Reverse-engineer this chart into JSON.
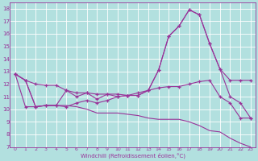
{
  "xlabel": "Windchill (Refroidissement éolien,°C)",
  "background_color": "#b2e0df",
  "grid_color": "#ffffff",
  "line_color": "#993399",
  "xlim": [
    -0.5,
    23.5
  ],
  "ylim": [
    7,
    18.5
  ],
  "yticks": [
    7,
    8,
    9,
    10,
    11,
    12,
    13,
    14,
    15,
    16,
    17,
    18
  ],
  "xticks": [
    0,
    1,
    2,
    3,
    4,
    5,
    6,
    7,
    8,
    9,
    10,
    11,
    12,
    13,
    14,
    15,
    16,
    17,
    18,
    19,
    20,
    21,
    22,
    23
  ],
  "line1_x": [
    0,
    1,
    2,
    3,
    4,
    5,
    6,
    7,
    8,
    9,
    10,
    11,
    12,
    13,
    14,
    15,
    16,
    17,
    18,
    19,
    20,
    21,
    22,
    23
  ],
  "line1_y": [
    12.8,
    12.3,
    12.0,
    11.9,
    11.9,
    11.5,
    11.3,
    11.3,
    11.2,
    11.2,
    11.2,
    11.1,
    11.1,
    11.5,
    13.1,
    15.8,
    16.6,
    17.9,
    17.5,
    15.2,
    13.2,
    12.3,
    12.3,
    12.3
  ],
  "line2_x": [
    0,
    1,
    2,
    3,
    4,
    5,
    6,
    7,
    8,
    9,
    10,
    11,
    12,
    13,
    14,
    15,
    16,
    17,
    18,
    19,
    20,
    21,
    22,
    23
  ],
  "line2_y": [
    12.8,
    12.3,
    10.2,
    10.3,
    10.3,
    11.5,
    11.0,
    11.3,
    10.8,
    11.2,
    11.0,
    11.1,
    11.1,
    11.5,
    13.1,
    15.8,
    16.6,
    17.9,
    17.5,
    15.2,
    13.2,
    11.0,
    10.5,
    9.3
  ],
  "line3_x": [
    0,
    1,
    2,
    3,
    4,
    5,
    6,
    7,
    8,
    9,
    10,
    11,
    12,
    13,
    14,
    15,
    16,
    17,
    18,
    19,
    20,
    21,
    22,
    23
  ],
  "line3_y": [
    12.8,
    12.3,
    10.2,
    10.3,
    10.3,
    10.3,
    10.2,
    10.0,
    9.7,
    9.7,
    9.7,
    9.6,
    9.5,
    9.3,
    9.2,
    9.2,
    9.2,
    9.0,
    8.7,
    8.3,
    8.2,
    7.7,
    7.3,
    7.0
  ],
  "line4_x": [
    0,
    1,
    2,
    3,
    4,
    5,
    6,
    7,
    8,
    9,
    10,
    11,
    12,
    13,
    14,
    15,
    16,
    17,
    18,
    19,
    20,
    21,
    22,
    23
  ],
  "line4_y": [
    12.8,
    10.2,
    10.2,
    10.3,
    10.3,
    10.2,
    10.5,
    10.7,
    10.5,
    10.7,
    11.0,
    11.1,
    11.3,
    11.5,
    11.7,
    11.8,
    11.8,
    12.0,
    12.2,
    12.3,
    11.0,
    10.5,
    9.3,
    9.3
  ]
}
